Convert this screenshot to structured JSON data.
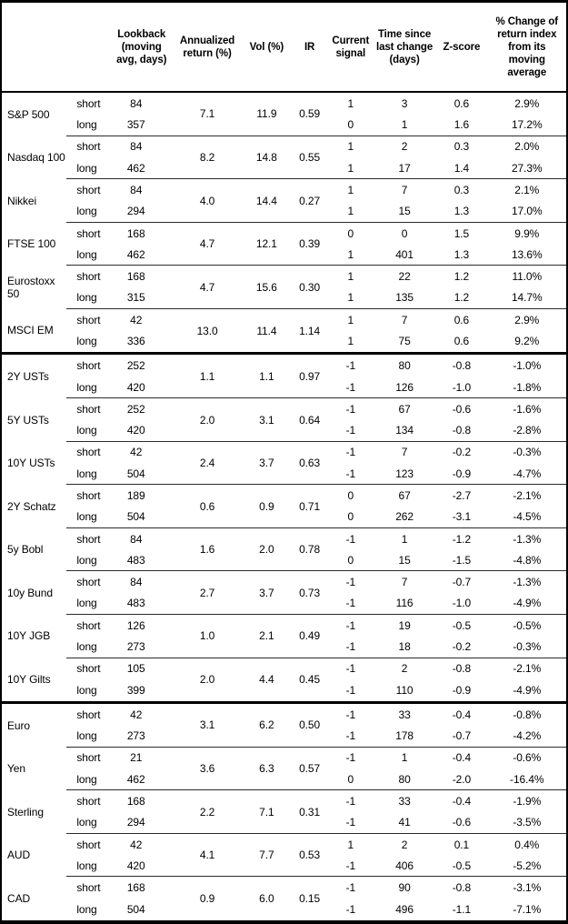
{
  "header": {
    "columns": {
      "asset": "",
      "horizon": "",
      "lookback": "Lookback\n(moving\navg, days)",
      "annualized": "Annualized\nreturn (%)",
      "vol": "Vol (%)",
      "ir": "IR",
      "signal": "Current\nsignal",
      "time_since": "Time since\nlast change\n(days)",
      "zscore": "Z-score",
      "pct_change": "% Change of\nreturn index\nfrom its\nmoving\naverage"
    }
  },
  "colors": {
    "text": "#000000",
    "background": "#ffffff",
    "border": "#000000",
    "group_line": "#2b2b2b"
  },
  "table": {
    "sections": [
      {
        "groups": [
          {
            "asset": "S&P 500",
            "annualized_return": "7.1",
            "vol": "11.9",
            "ir": "0.59",
            "rows": [
              {
                "horizon": "short",
                "lookback": "84",
                "signal": "1",
                "time_since": "3",
                "zscore": "0.6",
                "pct_change": "2.9%"
              },
              {
                "horizon": "long",
                "lookback": "357",
                "signal": "0",
                "time_since": "1",
                "zscore": "1.6",
                "pct_change": "17.2%"
              }
            ]
          },
          {
            "asset": "Nasdaq 100",
            "annualized_return": "8.2",
            "vol": "14.8",
            "ir": "0.55",
            "rows": [
              {
                "horizon": "short",
                "lookback": "84",
                "signal": "1",
                "time_since": "2",
                "zscore": "0.3",
                "pct_change": "2.0%"
              },
              {
                "horizon": "long",
                "lookback": "462",
                "signal": "1",
                "time_since": "17",
                "zscore": "1.4",
                "pct_change": "27.3%"
              }
            ]
          },
          {
            "asset": "Nikkei",
            "annualized_return": "4.0",
            "vol": "14.4",
            "ir": "0.27",
            "rows": [
              {
                "horizon": "short",
                "lookback": "84",
                "signal": "1",
                "time_since": "7",
                "zscore": "0.3",
                "pct_change": "2.1%"
              },
              {
                "horizon": "long",
                "lookback": "294",
                "signal": "1",
                "time_since": "15",
                "zscore": "1.3",
                "pct_change": "17.0%"
              }
            ]
          },
          {
            "asset": "FTSE 100",
            "annualized_return": "4.7",
            "vol": "12.1",
            "ir": "0.39",
            "rows": [
              {
                "horizon": "short",
                "lookback": "168",
                "signal": "0",
                "time_since": "0",
                "zscore": "1.5",
                "pct_change": "9.9%"
              },
              {
                "horizon": "long",
                "lookback": "462",
                "signal": "1",
                "time_since": "401",
                "zscore": "1.3",
                "pct_change": "13.6%"
              }
            ]
          },
          {
            "asset": "Eurostoxx 50",
            "annualized_return": "4.7",
            "vol": "15.6",
            "ir": "0.30",
            "rows": [
              {
                "horizon": "short",
                "lookback": "168",
                "signal": "1",
                "time_since": "22",
                "zscore": "1.2",
                "pct_change": "11.0%"
              },
              {
                "horizon": "long",
                "lookback": "315",
                "signal": "1",
                "time_since": "135",
                "zscore": "1.2",
                "pct_change": "14.7%"
              }
            ]
          },
          {
            "asset": "MSCI EM",
            "annualized_return": "13.0",
            "vol": "11.4",
            "ir": "1.14",
            "rows": [
              {
                "horizon": "short",
                "lookback": "42",
                "signal": "1",
                "time_since": "7",
                "zscore": "0.6",
                "pct_change": "2.9%"
              },
              {
                "horizon": "long",
                "lookback": "336",
                "signal": "1",
                "time_since": "75",
                "zscore": "0.6",
                "pct_change": "9.2%"
              }
            ]
          }
        ]
      },
      {
        "groups": [
          {
            "asset": "2Y USTs",
            "annualized_return": "1.1",
            "vol": "1.1",
            "ir": "0.97",
            "rows": [
              {
                "horizon": "short",
                "lookback": "252",
                "signal": "-1",
                "time_since": "80",
                "zscore": "-0.8",
                "pct_change": "-1.0%"
              },
              {
                "horizon": "long",
                "lookback": "420",
                "signal": "-1",
                "time_since": "126",
                "zscore": "-1.0",
                "pct_change": "-1.8%"
              }
            ]
          },
          {
            "asset": "5Y USTs",
            "annualized_return": "2.0",
            "vol": "3.1",
            "ir": "0.64",
            "rows": [
              {
                "horizon": "short",
                "lookback": "252",
                "signal": "-1",
                "time_since": "67",
                "zscore": "-0.6",
                "pct_change": "-1.6%"
              },
              {
                "horizon": "long",
                "lookback": "420",
                "signal": "-1",
                "time_since": "134",
                "zscore": "-0.8",
                "pct_change": "-2.8%"
              }
            ]
          },
          {
            "asset": "10Y USTs",
            "annualized_return": "2.4",
            "vol": "3.7",
            "ir": "0.63",
            "rows": [
              {
                "horizon": "short",
                "lookback": "42",
                "signal": "-1",
                "time_since": "7",
                "zscore": "-0.2",
                "pct_change": "-0.3%"
              },
              {
                "horizon": "long",
                "lookback": "504",
                "signal": "-1",
                "time_since": "123",
                "zscore": "-0.9",
                "pct_change": "-4.7%"
              }
            ]
          },
          {
            "asset": "2Y Schatz",
            "annualized_return": "0.6",
            "vol": "0.9",
            "ir": "0.71",
            "rows": [
              {
                "horizon": "short",
                "lookback": "189",
                "signal": "0",
                "time_since": "67",
                "zscore": "-2.7",
                "pct_change": "-2.1%"
              },
              {
                "horizon": "long",
                "lookback": "504",
                "signal": "0",
                "time_since": "262",
                "zscore": "-3.1",
                "pct_change": "-4.5%"
              }
            ]
          },
          {
            "asset": "5y Bobl",
            "annualized_return": "1.6",
            "vol": "2.0",
            "ir": "0.78",
            "rows": [
              {
                "horizon": "short",
                "lookback": "84",
                "signal": "-1",
                "time_since": "1",
                "zscore": "-1.2",
                "pct_change": "-1.3%"
              },
              {
                "horizon": "long",
                "lookback": "483",
                "signal": "0",
                "time_since": "15",
                "zscore": "-1.5",
                "pct_change": "-4.8%"
              }
            ]
          },
          {
            "asset": "10y Bund",
            "annualized_return": "2.7",
            "vol": "3.7",
            "ir": "0.73",
            "rows": [
              {
                "horizon": "short",
                "lookback": "84",
                "signal": "-1",
                "time_since": "7",
                "zscore": "-0.7",
                "pct_change": "-1.3%"
              },
              {
                "horizon": "long",
                "lookback": "483",
                "signal": "-1",
                "time_since": "116",
                "zscore": "-1.0",
                "pct_change": "-4.9%"
              }
            ]
          },
          {
            "asset": "10Y JGB",
            "annualized_return": "1.0",
            "vol": "2.1",
            "ir": "0.49",
            "rows": [
              {
                "horizon": "short",
                "lookback": "126",
                "signal": "-1",
                "time_since": "19",
                "zscore": "-0.5",
                "pct_change": "-0.5%"
              },
              {
                "horizon": "long",
                "lookback": "273",
                "signal": "-1",
                "time_since": "18",
                "zscore": "-0.2",
                "pct_change": "-0.3%"
              }
            ]
          },
          {
            "asset": "10Y Gilts",
            "annualized_return": "2.0",
            "vol": "4.4",
            "ir": "0.45",
            "rows": [
              {
                "horizon": "short",
                "lookback": "105",
                "signal": "-1",
                "time_since": "2",
                "zscore": "-0.8",
                "pct_change": "-2.1%"
              },
              {
                "horizon": "long",
                "lookback": "399",
                "signal": "-1",
                "time_since": "110",
                "zscore": "-0.9",
                "pct_change": "-4.9%"
              }
            ]
          }
        ]
      },
      {
        "groups": [
          {
            "asset": "Euro",
            "annualized_return": "3.1",
            "vol": "6.2",
            "ir": "0.50",
            "rows": [
              {
                "horizon": "short",
                "lookback": "42",
                "signal": "-1",
                "time_since": "33",
                "zscore": "-0.4",
                "pct_change": "-0.8%"
              },
              {
                "horizon": "long",
                "lookback": "273",
                "signal": "-1",
                "time_since": "178",
                "zscore": "-0.7",
                "pct_change": "-4.2%"
              }
            ]
          },
          {
            "asset": "Yen",
            "annualized_return": "3.6",
            "vol": "6.3",
            "ir": "0.57",
            "rows": [
              {
                "horizon": "short",
                "lookback": "21",
                "signal": "-1",
                "time_since": "1",
                "zscore": "-0.4",
                "pct_change": "-0.6%"
              },
              {
                "horizon": "long",
                "lookback": "462",
                "signal": "0",
                "time_since": "80",
                "zscore": "-2.0",
                "pct_change": "-16.4%"
              }
            ]
          },
          {
            "asset": "Sterling",
            "annualized_return": "2.2",
            "vol": "7.1",
            "ir": "0.31",
            "rows": [
              {
                "horizon": "short",
                "lookback": "168",
                "signal": "-1",
                "time_since": "33",
                "zscore": "-0.4",
                "pct_change": "-1.9%"
              },
              {
                "horizon": "long",
                "lookback": "294",
                "signal": "-1",
                "time_since": "41",
                "zscore": "-0.6",
                "pct_change": "-3.5%"
              }
            ]
          },
          {
            "asset": "AUD",
            "annualized_return": "4.1",
            "vol": "7.7",
            "ir": "0.53",
            "rows": [
              {
                "horizon": "short",
                "lookback": "42",
                "signal": "1",
                "time_since": "2",
                "zscore": "0.1",
                "pct_change": "0.4%"
              },
              {
                "horizon": "long",
                "lookback": "420",
                "signal": "-1",
                "time_since": "406",
                "zscore": "-0.5",
                "pct_change": "-5.2%"
              }
            ]
          },
          {
            "asset": "CAD",
            "annualized_return": "0.9",
            "vol": "6.0",
            "ir": "0.15",
            "rows": [
              {
                "horizon": "short",
                "lookback": "168",
                "signal": "-1",
                "time_since": "90",
                "zscore": "-0.8",
                "pct_change": "-3.1%"
              },
              {
                "horizon": "long",
                "lookback": "504",
                "signal": "-1",
                "time_since": "496",
                "zscore": "-1.1",
                "pct_change": "-7.1%"
              }
            ]
          }
        ]
      }
    ]
  }
}
